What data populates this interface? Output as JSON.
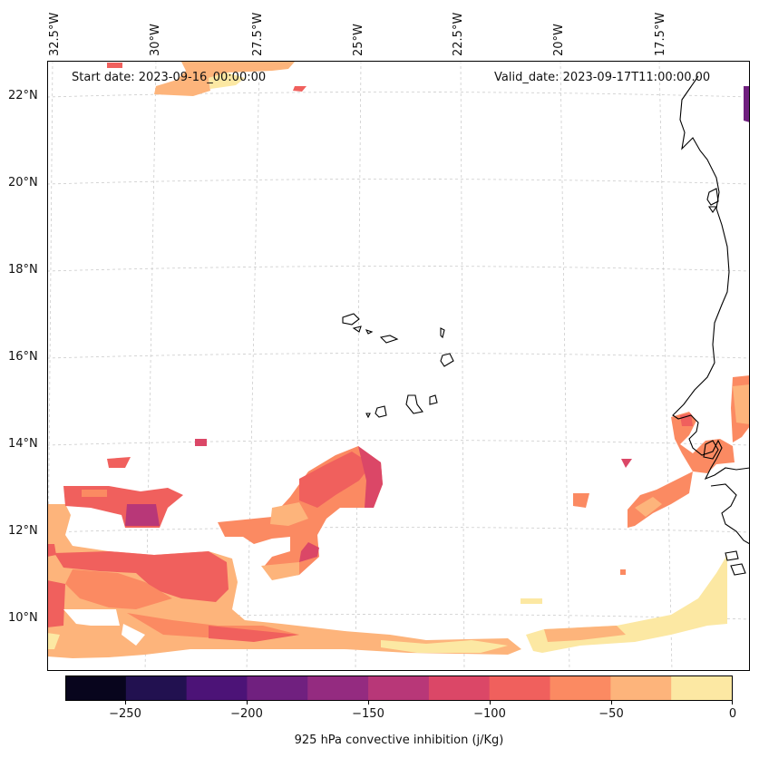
{
  "header": {
    "start_date": "Start date: 2023-09-16_00:00:00",
    "valid_date": "Valid_date: 2023-09-17T11:00:00.00"
  },
  "longitude_labels": [
    "32.5°W",
    "30°W",
    "27.5°W",
    "25°W",
    "22.5°W",
    "20°W",
    "17.5°W"
  ],
  "latitude_labels": [
    "22°N",
    "20°N",
    "18°N",
    "16°N",
    "14°N",
    "12°N",
    "10°N"
  ],
  "colorbar": {
    "label": "925 hPa convective inhibition (j/Kg)",
    "tick_labels": [
      "−250",
      "−200",
      "−150",
      "−100",
      "−50",
      "0"
    ],
    "levels": [
      -275,
      -250,
      -225,
      -200,
      -175,
      -150,
      -125,
      -100,
      -75,
      -50,
      -25,
      0
    ],
    "colors": [
      "#08051d",
      "#221150",
      "#4c1377",
      "#70207f",
      "#942b80",
      "#b83778",
      "#db4767",
      "#f0605d",
      "#fb8a62",
      "#fdb47b",
      "#fce8a3"
    ]
  },
  "colors": {
    "land_outline": "#000000",
    "gridline": "#cccccc"
  }
}
